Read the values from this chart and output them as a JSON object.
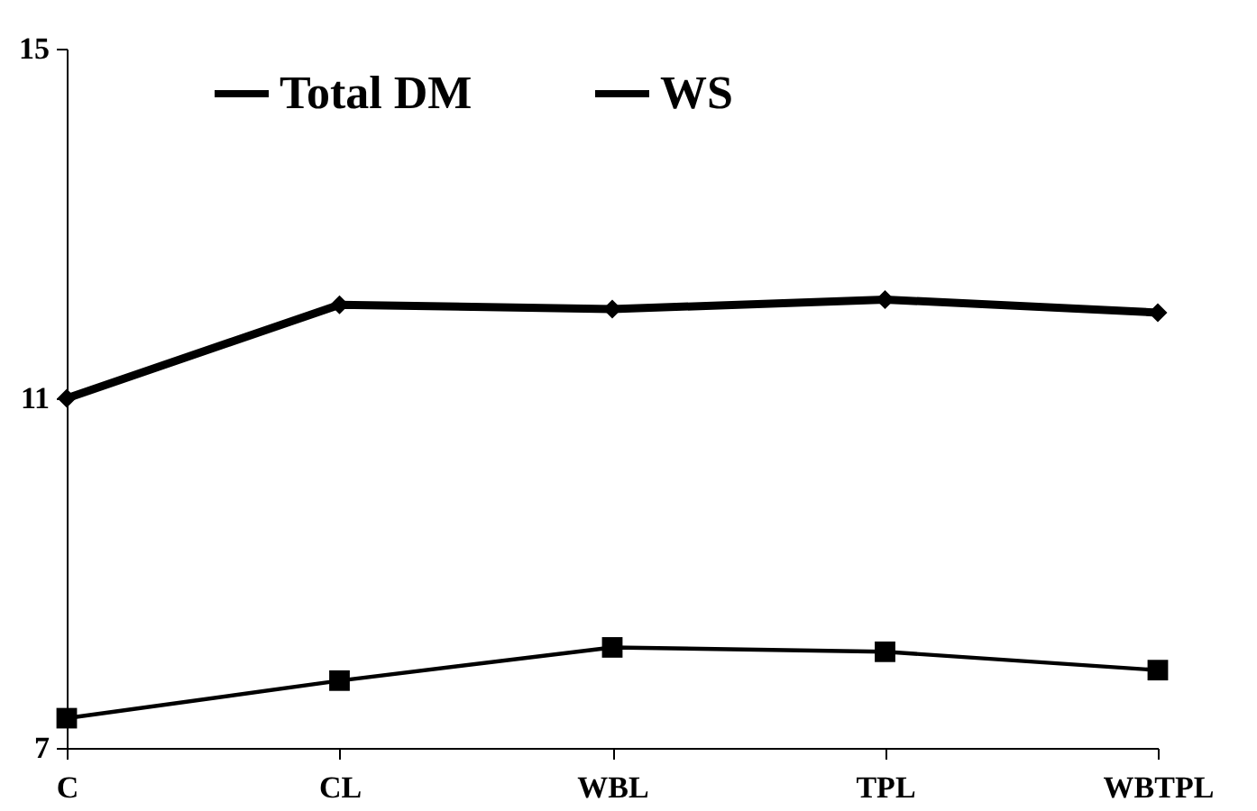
{
  "chart_data": {
    "type": "line",
    "categories": [
      "C",
      "CL",
      "WBL",
      "TPL",
      "WBTPL"
    ],
    "series": [
      {
        "name": "Total DM",
        "color": "#000000",
        "marker": "diamond",
        "values": [
          11.0,
          12.07,
          12.02,
          12.13,
          11.98
        ]
      },
      {
        "name": "WS",
        "color": "#000000",
        "marker": "square",
        "values": [
          7.34,
          7.77,
          8.15,
          8.1,
          7.89
        ]
      }
    ],
    "ylim": [
      7,
      15
    ],
    "yticks": [
      7,
      11,
      15
    ],
    "grid": false,
    "legend": "top"
  }
}
